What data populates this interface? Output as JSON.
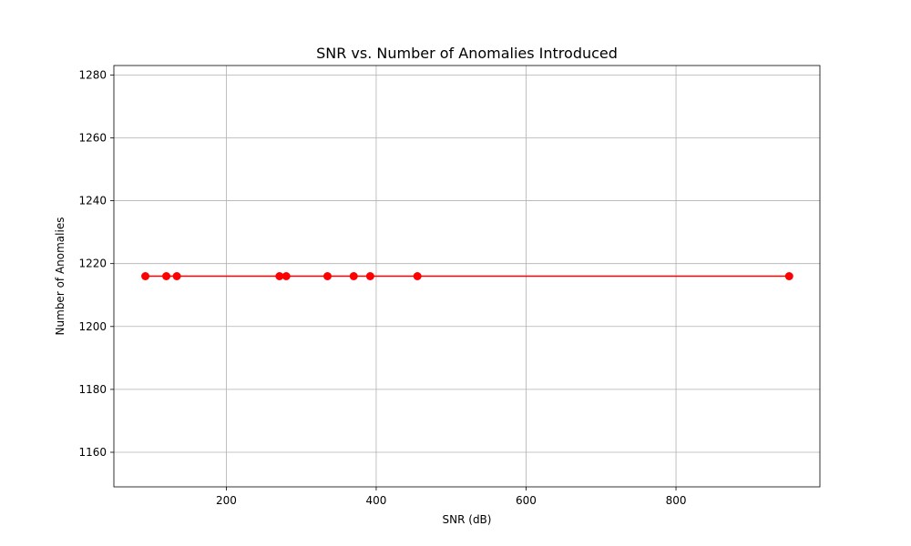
{
  "chart_data": {
    "type": "line",
    "title": "SNR vs. Number of Anomalies Introduced",
    "xlabel": "SNR (dB)",
    "ylabel": "Number of Anomalies",
    "xlim": [
      50,
      992
    ],
    "ylim": [
      1149,
      1283
    ],
    "x_ticks": [
      200,
      400,
      600,
      800
    ],
    "y_ticks": [
      1160,
      1180,
      1200,
      1220,
      1240,
      1260,
      1280
    ],
    "grid": true,
    "series": [
      {
        "color": "#ff0000",
        "marker": "circle",
        "x": [
          92,
          120,
          134,
          271,
          280,
          335,
          370,
          392,
          455,
          951
        ],
        "y": [
          1216,
          1216,
          1216,
          1216,
          1216,
          1216,
          1216,
          1216,
          1216,
          1216
        ]
      }
    ]
  }
}
